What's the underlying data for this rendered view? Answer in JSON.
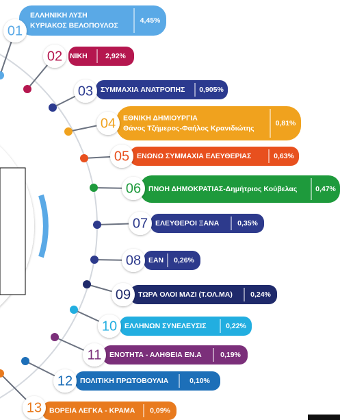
{
  "items": [
    {
      "number": "01",
      "name": [
        "ΕΛΛΗΝΙΚΗ ΛΥΣΗ",
        "ΚΥΡΙΑΚΟΣ ΒΕΛΟΠΟΥΛΟΣ"
      ],
      "value": "4,45%"
    },
    {
      "number": "02",
      "name": [
        "ΝΙΚΗ"
      ],
      "value": "2,92%"
    },
    {
      "number": "03",
      "name": [
        "ΣΥΜΜΑΧΙΑ ΑΝΑΤΡΟΠΗΣ"
      ],
      "value": "0,905%"
    },
    {
      "number": "04",
      "name": [
        "ΕΘΝΙΚΗ ΔΗΜΙΟΥΡΓΙΑ",
        "Θάνος Τζήμερος-Φαήλος Κρανιδιώτης"
      ],
      "value": "0,81%"
    },
    {
      "number": "05",
      "name": [
        "ΕΝΩΝΩ ΣΥΜΜΑΧΙΑ ΕΛΕΥΘΕΡΙΑΣ"
      ],
      "value": "0,63%"
    },
    {
      "number": "06",
      "name": [
        "ΠΝΟΗ ΔΗΜΟΚΡΑΤΙΑΣ-Δημήτριος Κούβελας"
      ],
      "value": "0,47%"
    },
    {
      "number": "07",
      "name": [
        "ΕΛΕΥΘΕΡΟΙ ΞΑΝΑ"
      ],
      "value": "0,35%"
    },
    {
      "number": "08",
      "name": [
        "ΕΑΝ"
      ],
      "value": "0,26%"
    },
    {
      "number": "09",
      "name": [
        "ΤΩΡΑ ΟΛΟΙ ΜΑΖΙ (Τ.ΟΛ.ΜΑ)"
      ],
      "value": "0,24%"
    },
    {
      "number": "10",
      "name": [
        "ΕΛΛΗΝΩΝ ΣΥΝΕΛΕΥΣΙΣ"
      ],
      "value": "0,22%"
    },
    {
      "number": "11",
      "name": [
        "ΕΝΟΤΗΤΑ - ΑΛΗΘΕΙΑ ΕΝ.Α"
      ],
      "value": "0,19%"
    },
    {
      "number": "12",
      "name": [
        "ΠΟΛΙΤΙΚΗ ΠΡΩΤΟΒΟΥΛΙΑ"
      ],
      "value": "0,10%"
    },
    {
      "number": "13",
      "name": [
        "ΒΟΡΕΙΑ ΛΕΓΚΑ - ΚΡΑΜΑ"
      ],
      "value": "0,09%"
    }
  ]
}
